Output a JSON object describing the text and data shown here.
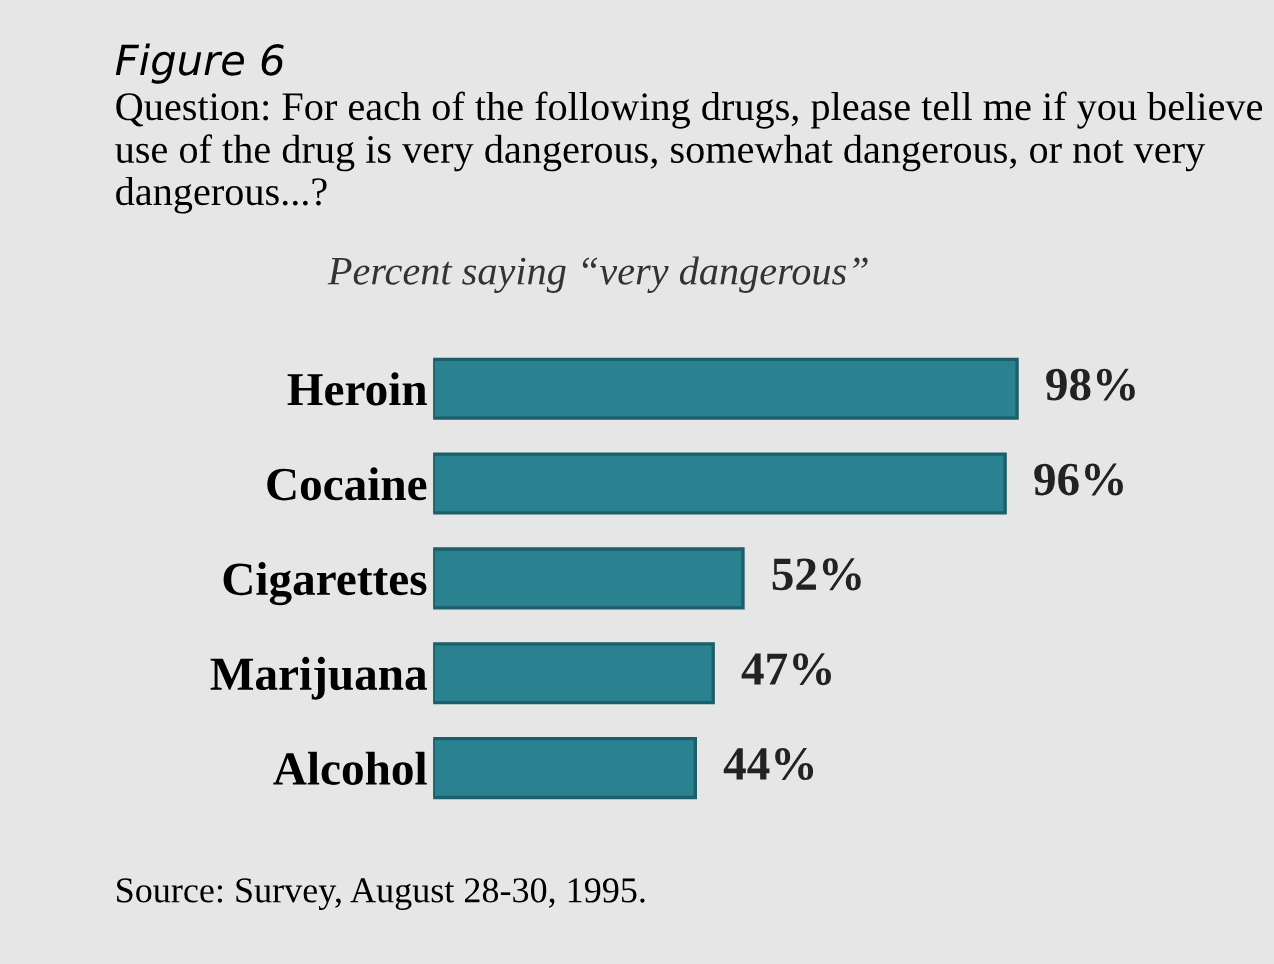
{
  "chart_data": {
    "type": "bar",
    "orientation": "horizontal",
    "title": "Figure 6",
    "subtitle": "Question: For each of the following drugs, please tell me if you believe use of the drug is very dangerous, somewhat dangerous, or not very dangerous...?",
    "annotations": [
      "Percent saying “very dangerous”",
      "Source: Survey, August 28-30, 1995."
    ],
    "categories": [
      "Heroin",
      "Cocaine",
      "Cigarettes",
      "Marijuana",
      "Alcohol"
    ],
    "values": [
      98,
      96,
      52,
      47,
      44
    ],
    "value_labels": [
      "98%",
      "96%",
      "52%",
      "47%",
      "44%"
    ],
    "color": "#2a8291",
    "grid": false,
    "legend": false
  }
}
